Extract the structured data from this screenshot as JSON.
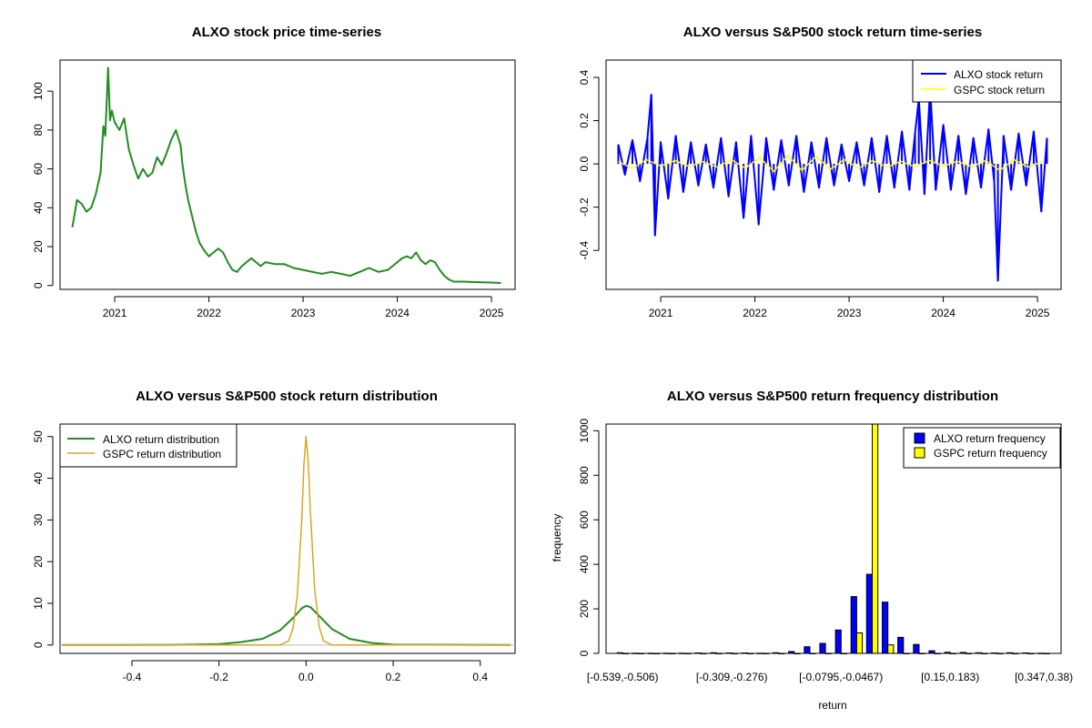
{
  "chart_data": [
    {
      "type": "line",
      "title": "ALXO stock price time-series",
      "xlabel": "",
      "ylabel": "",
      "xlim": [
        2020.42,
        2025.25
      ],
      "ylim": [
        -2,
        116
      ],
      "xticks": [
        2021,
        2022,
        2023,
        2024,
        2025
      ],
      "xtick_labels": [
        "2021",
        "2022",
        "2023",
        "2024",
        "2025"
      ],
      "yticks": [
        0,
        20,
        40,
        60,
        80,
        100
      ],
      "ytick_labels": [
        "0",
        "20",
        "40",
        "60",
        "80",
        "100"
      ],
      "grid": false,
      "series": [
        {
          "color": "#228B22",
          "x": [
            2020.55,
            2020.6,
            2020.65,
            2020.7,
            2020.75,
            2020.8,
            2020.85,
            2020.88,
            2020.9,
            2020.93,
            2020.95,
            2020.97,
            2021.0,
            2021.05,
            2021.1,
            2021.15,
            2021.2,
            2021.25,
            2021.3,
            2021.35,
            2021.4,
            2021.45,
            2021.5,
            2021.55,
            2021.6,
            2021.65,
            2021.7,
            2021.72,
            2021.75,
            2021.78,
            2021.82,
            2021.86,
            2021.9,
            2021.95,
            2022.0,
            2022.05,
            2022.1,
            2022.15,
            2022.2,
            2022.25,
            2022.3,
            2022.35,
            2022.4,
            2022.45,
            2022.5,
            2022.55,
            2022.6,
            2022.7,
            2022.8,
            2022.9,
            2023.0,
            2023.1,
            2023.2,
            2023.3,
            2023.4,
            2023.5,
            2023.6,
            2023.7,
            2023.8,
            2023.9,
            2024.0,
            2024.05,
            2024.1,
            2024.15,
            2024.2,
            2024.25,
            2024.3,
            2024.35,
            2024.4,
            2024.45,
            2024.5,
            2024.55,
            2024.6,
            2024.7,
            2024.8,
            2024.9,
            2025.0,
            2025.1
          ],
          "y": [
            30,
            44,
            42,
            38,
            40,
            47,
            58,
            82,
            77,
            112,
            85,
            90,
            84,
            80,
            86,
            70,
            62,
            55,
            60,
            56,
            58,
            66,
            62,
            68,
            75,
            80,
            72,
            62,
            52,
            44,
            36,
            28,
            22,
            18,
            15,
            17,
            19,
            17,
            12,
            8,
            7,
            10,
            12,
            14,
            12,
            10,
            12,
            11,
            11,
            9,
            8,
            7,
            6,
            7,
            6,
            5,
            7,
            9,
            7,
            8,
            12,
            14,
            15,
            14,
            17,
            13,
            11,
            13,
            12,
            8,
            5,
            3,
            2,
            2,
            1.8,
            1.6,
            1.5,
            1.3
          ]
        }
      ]
    },
    {
      "type": "line",
      "title": "ALXO versus S&P500 stock return time-series",
      "xlabel": "",
      "ylabel": "",
      "xlim": [
        2020.42,
        2025.25
      ],
      "ylim": [
        -0.58,
        0.48
      ],
      "xticks": [
        2021,
        2022,
        2023,
        2024,
        2025
      ],
      "xtick_labels": [
        "2021",
        "2022",
        "2023",
        "2024",
        "2025"
      ],
      "yticks": [
        -0.4,
        -0.2,
        0.0,
        0.2,
        0.4
      ],
      "ytick_labels": [
        "-0.4",
        "-0.2",
        "0.0",
        "0.2",
        "0.4"
      ],
      "grid": false,
      "legend_position": "top-right",
      "series": [
        {
          "name": "ALXO stock return",
          "color": "#0000FF",
          "x": [
            2020.55,
            2020.62,
            2020.7,
            2020.78,
            2020.86,
            2020.9,
            2020.94,
            2021.0,
            2021.08,
            2021.16,
            2021.24,
            2021.32,
            2021.4,
            2021.48,
            2021.56,
            2021.64,
            2021.72,
            2021.8,
            2021.88,
            2021.96,
            2022.04,
            2022.12,
            2022.2,
            2022.28,
            2022.36,
            2022.44,
            2022.52,
            2022.6,
            2022.68,
            2022.76,
            2022.84,
            2022.92,
            2023.0,
            2023.08,
            2023.16,
            2023.24,
            2023.32,
            2023.4,
            2023.48,
            2023.56,
            2023.64,
            2023.7,
            2023.74,
            2023.8,
            2023.86,
            2023.92,
            2024.0,
            2024.08,
            2024.16,
            2024.24,
            2024.32,
            2024.4,
            2024.48,
            2024.54,
            2024.58,
            2024.64,
            2024.72,
            2024.8,
            2024.88,
            2024.96,
            2025.04,
            2025.1
          ],
          "y": [
            0.09,
            -0.05,
            0.11,
            -0.08,
            0.12,
            0.32,
            -0.33,
            0.1,
            -0.16,
            0.13,
            -0.13,
            0.1,
            -0.1,
            0.09,
            -0.11,
            0.12,
            -0.15,
            0.1,
            -0.25,
            0.13,
            -0.28,
            0.12,
            -0.12,
            0.11,
            -0.1,
            0.13,
            -0.13,
            0.1,
            -0.11,
            0.12,
            -0.1,
            0.09,
            -0.08,
            0.1,
            -0.1,
            0.12,
            -0.13,
            0.13,
            -0.11,
            0.15,
            -0.12,
            0.14,
            0.3,
            -0.14,
            0.35,
            -0.12,
            0.18,
            -0.12,
            0.13,
            -0.14,
            0.12,
            -0.11,
            0.16,
            -0.08,
            -0.54,
            0.13,
            -0.12,
            0.14,
            -0.1,
            0.15,
            -0.22,
            0.12
          ]
        },
        {
          "name": "GSPC stock return",
          "color": "#FFFF00",
          "x": [
            2020.55,
            2020.7,
            2020.85,
            2021.0,
            2021.15,
            2021.3,
            2021.45,
            2021.6,
            2021.75,
            2021.9,
            2022.05,
            2022.2,
            2022.35,
            2022.5,
            2022.65,
            2022.8,
            2022.95,
            2023.1,
            2023.25,
            2023.4,
            2023.55,
            2023.7,
            2023.85,
            2024.0,
            2024.15,
            2024.3,
            2024.45,
            2024.6,
            2024.75,
            2024.9,
            2025.05
          ],
          "y": [
            0.01,
            -0.02,
            0.02,
            -0.01,
            0.015,
            -0.012,
            0.01,
            -0.015,
            0.02,
            -0.02,
            0.03,
            -0.035,
            0.04,
            -0.03,
            0.035,
            -0.025,
            0.02,
            -0.02,
            0.015,
            -0.015,
            0.012,
            -0.014,
            0.016,
            -0.01,
            0.012,
            -0.012,
            0.015,
            -0.03,
            0.02,
            -0.015,
            0.01
          ]
        }
      ]
    },
    {
      "type": "line",
      "title": "ALXO versus S&P500 stock return distribution",
      "xlabel": "",
      "ylabel": "",
      "xlim": [
        -0.565,
        0.48
      ],
      "ylim": [
        -2,
        53
      ],
      "xticks": [
        -0.4,
        -0.2,
        0.0,
        0.2,
        0.4
      ],
      "xtick_labels": [
        "-0.4",
        "-0.2",
        "0.0",
        "0.2",
        "0.4"
      ],
      "yticks": [
        0,
        10,
        20,
        30,
        40,
        50
      ],
      "ytick_labels": [
        "0",
        "10",
        "20",
        "30",
        "40",
        "50"
      ],
      "grid": false,
      "legend_position": "top-left",
      "series": [
        {
          "name": "ALXO return distribution",
          "color": "#228B22",
          "x": [
            -0.56,
            -0.3,
            -0.2,
            -0.15,
            -0.1,
            -0.06,
            -0.03,
            -0.01,
            0.0,
            0.01,
            0.03,
            0.06,
            0.1,
            0.15,
            0.2,
            0.47
          ],
          "y": [
            0,
            0.05,
            0.2,
            0.7,
            1.5,
            3.5,
            6.5,
            8.8,
            9.4,
            9.1,
            7,
            3.8,
            1.5,
            0.5,
            0.1,
            0
          ]
        },
        {
          "name": "GSPC return distribution",
          "color": "#DAA520",
          "x": [
            -0.56,
            -0.06,
            -0.04,
            -0.03,
            -0.02,
            -0.01,
            -0.005,
            0.0,
            0.005,
            0.01,
            0.02,
            0.03,
            0.04,
            0.06,
            0.47
          ],
          "y": [
            0,
            0,
            1,
            4,
            12,
            30,
            43,
            50,
            44,
            32,
            13,
            4.5,
            1,
            0,
            0
          ]
        }
      ]
    },
    {
      "type": "bar",
      "title": "ALXO versus S&P500 return frequency distribution",
      "xlabel": "return",
      "ylabel": "frequency",
      "ylim": [
        0,
        1030
      ],
      "yticks": [
        0,
        200,
        400,
        600,
        800,
        1000
      ],
      "ytick_labels": [
        "0",
        "200",
        "400",
        "600",
        "800",
        "1000"
      ],
      "category_labels": [
        "[-0.539,-0.506)",
        "[-0.309,-0.276)",
        "[-0.0795,-0.0467)",
        "[0.15,0.183)",
        "[0.347,0.38)"
      ],
      "category_label_positions": [
        0,
        7,
        14,
        21,
        27
      ],
      "n_categories": 28,
      "grid": false,
      "legend_position": "top-right",
      "series": [
        {
          "name": "ALXO return frequency",
          "color": "#0000FF",
          "values": [
            3,
            1,
            1,
            1,
            1,
            2,
            3,
            2,
            2,
            1,
            3,
            8,
            30,
            45,
            105,
            255,
            355,
            230,
            72,
            40,
            12,
            5,
            4,
            3,
            2,
            3,
            2,
            1
          ]
        },
        {
          "name": "GSPC return frequency",
          "color": "#FFFF00",
          "values": [
            0,
            0,
            0,
            0,
            0,
            0,
            0,
            0,
            0,
            0,
            0,
            0,
            0,
            0,
            0,
            92,
            1030,
            38,
            0,
            0,
            0,
            0,
            0,
            0,
            0,
            0,
            0,
            0
          ]
        }
      ]
    }
  ]
}
